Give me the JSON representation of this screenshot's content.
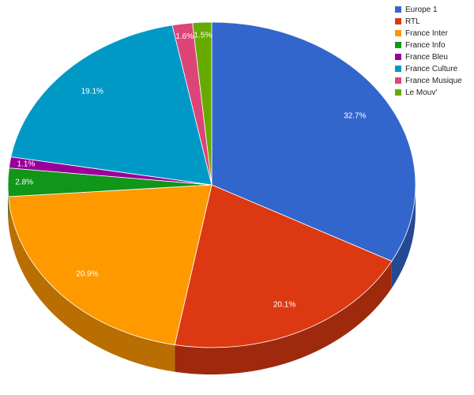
{
  "chart_data": {
    "type": "pie3d",
    "categories": [
      "Europe 1",
      "RTL",
      "France Inter",
      "France Info",
      "France Bleu",
      "France Culture",
      "France Musique",
      "Le Mouv'"
    ],
    "values": [
      32.7,
      20.1,
      20.9,
      2.8,
      1.1,
      19.1,
      1.6,
      1.5
    ],
    "value_labels": [
      "32.7%",
      "20.1%",
      "20.9%",
      "2.8%",
      "1.1%",
      "19.1%",
      "1.6%",
      "1.5%"
    ],
    "colors": [
      "#3366cc",
      "#dc3912",
      "#ff9900",
      "#109618",
      "#990099",
      "#0099c6",
      "#dd4477",
      "#66aa00"
    ],
    "legend": "top-right"
  }
}
